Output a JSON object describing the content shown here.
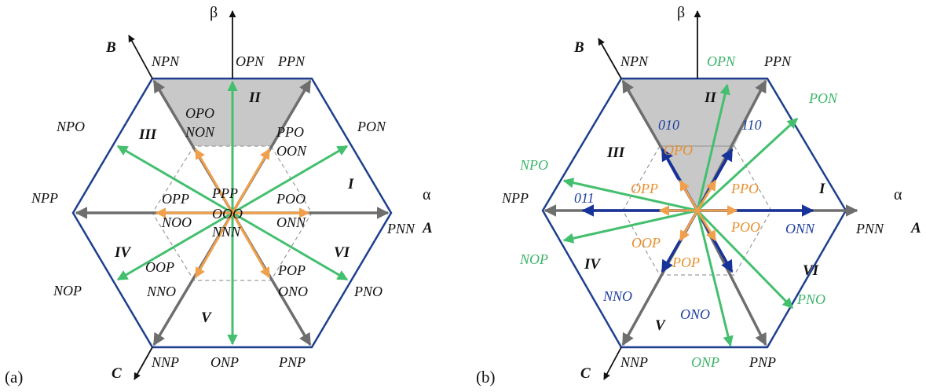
{
  "colors": {
    "hexagon": "#1f3f8f",
    "gray_vector": "#6e6e6e",
    "orange_vector": "#f0a04b",
    "green_vector": "#43bf6e",
    "blue_vector": "#17339a",
    "shade": "#c8c8c8",
    "dashed": "#9a9a9a"
  },
  "panel_a": {
    "panel_label": "(a)",
    "axis_alpha": "α",
    "axis_beta": "β",
    "phase_A": "A",
    "phase_B": "B",
    "phase_C": "C",
    "large_vectors": [
      "PNN",
      "PPN",
      "NPN",
      "NPP",
      "NNP",
      "PNP"
    ],
    "medium_vectors": [
      "PON",
      "OPN",
      "NPO",
      "NOP",
      "ONP",
      "PNO"
    ],
    "small_upper": [
      "POO",
      "PPO",
      "OPO",
      "OPP",
      "OOP",
      "POP"
    ],
    "small_lower": [
      "ONN",
      "OON",
      "NON",
      "NOO",
      "NNO",
      "ONO"
    ],
    "zero_vectors": [
      "PPP",
      "OOO",
      "NNN"
    ],
    "sectors": [
      "I",
      "II",
      "III",
      "IV",
      "V",
      "VI"
    ]
  },
  "panel_b": {
    "panel_label": "(b)",
    "axis_alpha": "α",
    "axis_beta": "β",
    "phase_A": "A",
    "phase_B": "B",
    "phase_C": "C",
    "large_vectors": [
      "PNN",
      "PPN",
      "NPN",
      "NPP",
      "NNP",
      "PNP"
    ],
    "medium_vectors": [
      "PON",
      "OPN",
      "NPO",
      "NOP",
      "ONP",
      "PNO"
    ],
    "small_orange": [
      "PPO",
      "OPO",
      "OPP",
      "OOP",
      "POP",
      "POO"
    ],
    "small_blue": [
      "ONN",
      "110",
      "010",
      "011",
      "NNO",
      "ONO"
    ],
    "sectors": [
      "I",
      "II",
      "III",
      "IV",
      "V",
      "VI"
    ]
  }
}
